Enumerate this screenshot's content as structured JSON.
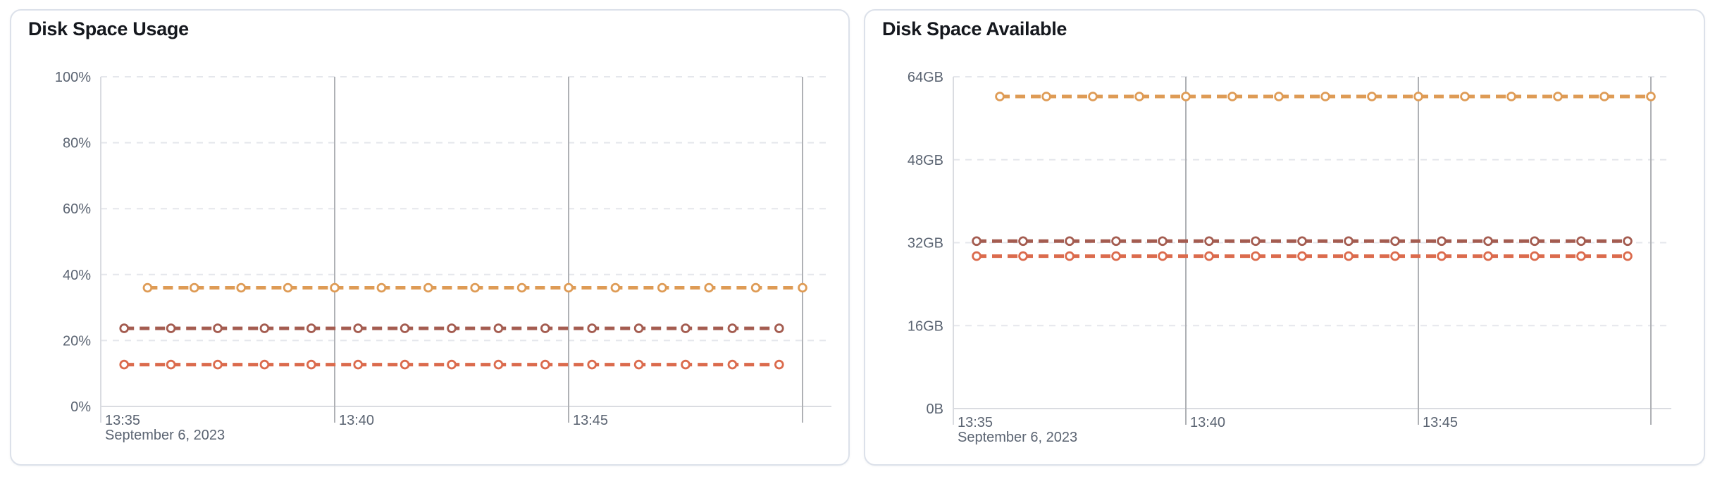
{
  "app": {
    "background": "#ffffff",
    "card_background": "#ffffff",
    "card_border_color": "#dce1ea",
    "title_color": "#15181e",
    "axis_label_color": "#5b6472",
    "grid_dash_color": "#e5e7ec",
    "grid_solid_color": "#afb1b5",
    "axis_line_color": "#dadce1"
  },
  "chart_data": [
    {
      "type": "line",
      "title": "Disk Space Usage",
      "style": "dashed-line-with-open-circle-markers",
      "legend": "none",
      "grid": {
        "horizontal": "dashed",
        "vertical": "solid"
      },
      "y_unit": "%",
      "ylim": [
        0,
        100
      ],
      "y_tick_labels_top_to_bottom": [
        "100%",
        "80%",
        "60%",
        "40%",
        "20%",
        "0%"
      ],
      "x_axis": {
        "tick_labels": [
          "13:35",
          "13:40",
          "13:45"
        ],
        "tick_t_min": [
          0,
          5,
          10
        ],
        "vertical_gridline_t_min": [
          5,
          10,
          15
        ],
        "date_label": "September 6, 2023",
        "t_min_range": [
          0,
          15.6
        ],
        "start_time": "13:35"
      },
      "series": [
        {
          "name": "orange",
          "color": "#de9b55",
          "t_min": [
            1,
            2,
            3,
            4,
            5,
            6,
            7,
            8,
            9,
            10,
            11,
            12,
            13,
            14,
            15
          ],
          "values": [
            36,
            36,
            36,
            36,
            36,
            36,
            36,
            36,
            36,
            36,
            36,
            36,
            36,
            36,
            36
          ]
        },
        {
          "name": "brown",
          "color": "#a45c50",
          "t_min": [
            0.5,
            1.5,
            2.5,
            3.5,
            4.5,
            5.5,
            6.5,
            7.5,
            8.5,
            9.5,
            10.5,
            11.5,
            12.5,
            13.5,
            14.5
          ],
          "values": [
            23.7,
            23.7,
            23.7,
            23.7,
            23.7,
            23.7,
            23.7,
            23.7,
            23.7,
            23.7,
            23.7,
            23.7,
            23.7,
            23.7,
            23.7
          ]
        },
        {
          "name": "red",
          "color": "#db6b4d",
          "t_min": [
            0.5,
            1.5,
            2.5,
            3.5,
            4.5,
            5.5,
            6.5,
            7.5,
            8.5,
            9.5,
            10.5,
            11.5,
            12.5,
            13.5,
            14.5
          ],
          "values": [
            12.7,
            12.7,
            12.7,
            12.7,
            12.7,
            12.7,
            12.7,
            12.7,
            12.7,
            12.7,
            12.7,
            12.7,
            12.7,
            12.7,
            12.7
          ]
        }
      ]
    },
    {
      "type": "line",
      "title": "Disk Space Available",
      "style": "dashed-line-with-open-circle-markers",
      "legend": "none",
      "grid": {
        "horizontal": "dashed",
        "vertical": "solid"
      },
      "y_unit": "GB",
      "ylim": [
        0,
        64
      ],
      "y_tick_labels_top_to_bottom": [
        "64GB",
        "48GB",
        "32GB",
        "16GB",
        "0B"
      ],
      "x_axis": {
        "tick_labels": [
          "13:35",
          "13:40",
          "13:45"
        ],
        "tick_t_min": [
          0,
          5,
          10
        ],
        "vertical_gridline_t_min": [
          5,
          10,
          15
        ],
        "date_label": "September 6, 2023",
        "t_min_range": [
          0,
          15.5
        ],
        "start_time": "13:35"
      },
      "series": [
        {
          "name": "orange",
          "color": "#de9b55",
          "t_min": [
            1,
            2,
            3,
            4,
            5,
            6,
            7,
            8,
            9,
            10,
            11,
            12,
            13,
            14,
            15
          ],
          "values": [
            60.2,
            60.2,
            60.2,
            60.2,
            60.2,
            60.2,
            60.2,
            60.2,
            60.2,
            60.2,
            60.2,
            60.2,
            60.2,
            60.2,
            60.2
          ]
        },
        {
          "name": "brown",
          "color": "#a45c50",
          "t_min": [
            0.5,
            1.5,
            2.5,
            3.5,
            4.5,
            5.5,
            6.5,
            7.5,
            8.5,
            9.5,
            10.5,
            11.5,
            12.5,
            13.5,
            14.5
          ],
          "values": [
            32.3,
            32.3,
            32.3,
            32.3,
            32.3,
            32.3,
            32.3,
            32.3,
            32.3,
            32.3,
            32.3,
            32.3,
            32.3,
            32.3,
            32.3
          ]
        },
        {
          "name": "red",
          "color": "#db6b4d",
          "t_min": [
            0.5,
            1.5,
            2.5,
            3.5,
            4.5,
            5.5,
            6.5,
            7.5,
            8.5,
            9.5,
            10.5,
            11.5,
            12.5,
            13.5,
            14.5
          ],
          "values": [
            29.4,
            29.4,
            29.4,
            29.4,
            29.4,
            29.4,
            29.4,
            29.4,
            29.4,
            29.4,
            29.4,
            29.4,
            29.4,
            29.4,
            29.4
          ]
        }
      ]
    }
  ]
}
